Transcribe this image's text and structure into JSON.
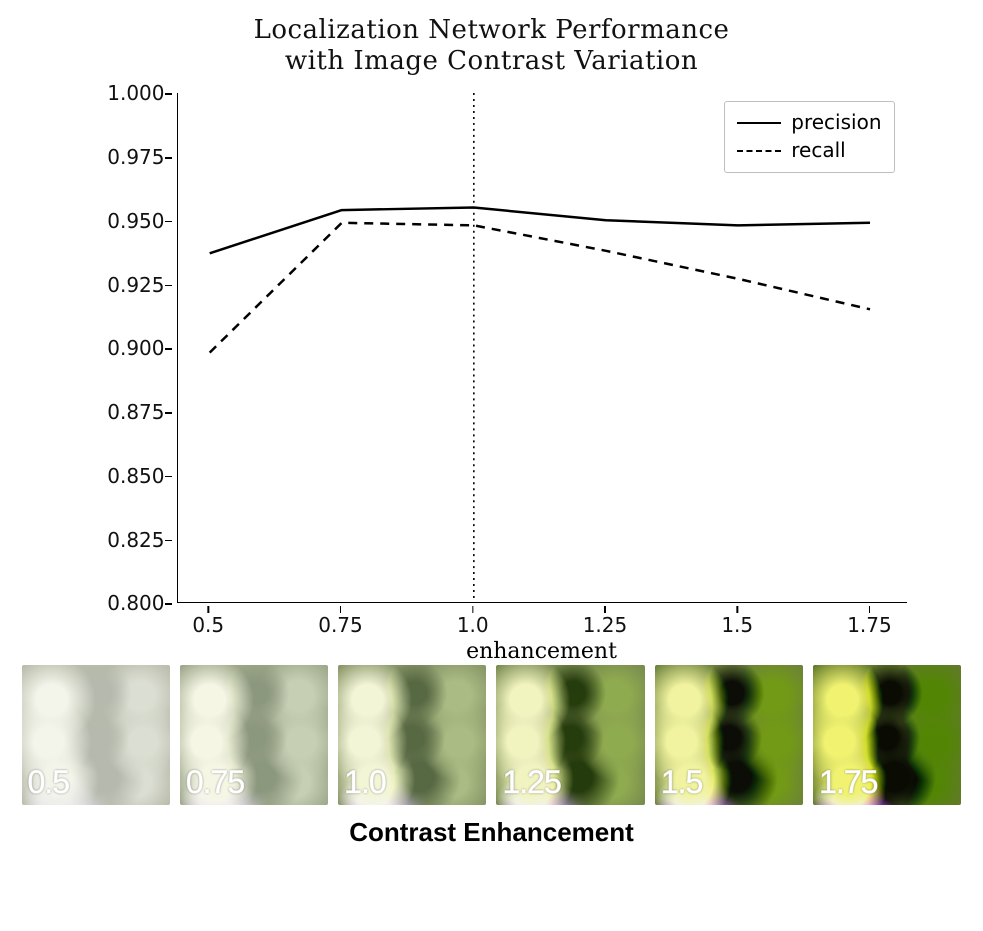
{
  "chart": {
    "type": "line",
    "title_line1": "Localization Network Performance",
    "title_line2": "with Image Contrast Variation",
    "title_fontsize": 26,
    "xlabel": "enhancement",
    "ylabel": "",
    "label_fontsize": 22,
    "tick_fontsize": 20,
    "xlim": [
      0.44,
      1.82
    ],
    "ylim": [
      0.8,
      1.0
    ],
    "xticks": [
      0.5,
      0.75,
      1.0,
      1.25,
      1.5,
      1.75
    ],
    "xtick_labels": [
      "0.5",
      "0.75",
      "1.0",
      "1.25",
      "1.5",
      "1.75"
    ],
    "yticks": [
      0.8,
      0.825,
      0.85,
      0.875,
      0.9,
      0.925,
      0.95,
      0.975,
      1.0
    ],
    "ytick_labels": [
      "0.800",
      "0.825",
      "0.850",
      "0.875",
      "0.900",
      "0.925",
      "0.950",
      "0.975",
      "1.000"
    ],
    "vline_x": 1.0,
    "vline_style": "dotted",
    "background_color": "#ffffff",
    "axis_color": "#000000",
    "series": [
      {
        "name": "precision",
        "style": "solid",
        "color": "#000000",
        "line_width": 2.5,
        "x": [
          0.5,
          0.75,
          1.0,
          1.25,
          1.5,
          1.75
        ],
        "y": [
          0.937,
          0.954,
          0.955,
          0.95,
          0.948,
          0.949
        ]
      },
      {
        "name": "recall",
        "style": "dashed",
        "dash": "9 7",
        "color": "#000000",
        "line_width": 2.5,
        "x": [
          0.5,
          0.75,
          1.0,
          1.25,
          1.5,
          1.75
        ],
        "y": [
          0.898,
          0.949,
          0.948,
          0.938,
          0.927,
          0.915
        ]
      }
    ],
    "legend": {
      "position": "top-right",
      "border_color": "#bfbfbf",
      "items": [
        "precision",
        "recall"
      ]
    }
  },
  "thumb_strip": {
    "caption": "Contrast Enhancement",
    "caption_fontsize": 26,
    "caption_weight": "bold",
    "items": [
      {
        "value": "0.5",
        "label": "0.5",
        "base": "#b8bcaa",
        "dark": "#7c8470",
        "light": "#dedecf",
        "accent": "#c9c2d8"
      },
      {
        "value": "0.75",
        "label": "0.75",
        "base": "#9ca688",
        "dark": "#5d6a4e",
        "light": "#d7d8be",
        "accent": "#c0b4d4"
      },
      {
        "value": "1.0",
        "label": "1.0",
        "base": "#869466",
        "dark": "#3f4d30",
        "light": "#d8dcae",
        "accent": "#b6a0d2"
      },
      {
        "value": "1.25",
        "label": "1.25",
        "base": "#788a4f",
        "dark": "#2c3a1e",
        "light": "#dfe49f",
        "accent": "#b290d2"
      },
      {
        "value": "1.5",
        "label": "1.5",
        "base": "#6d823c",
        "dark": "#1c2a10",
        "light": "#e6ec90",
        "accent": "#ae80d4"
      },
      {
        "value": "1.75",
        "label": "1.75",
        "base": "#637a2c",
        "dark": "#101c06",
        "light": "#edf380",
        "accent": "#aa70d6"
      }
    ]
  }
}
